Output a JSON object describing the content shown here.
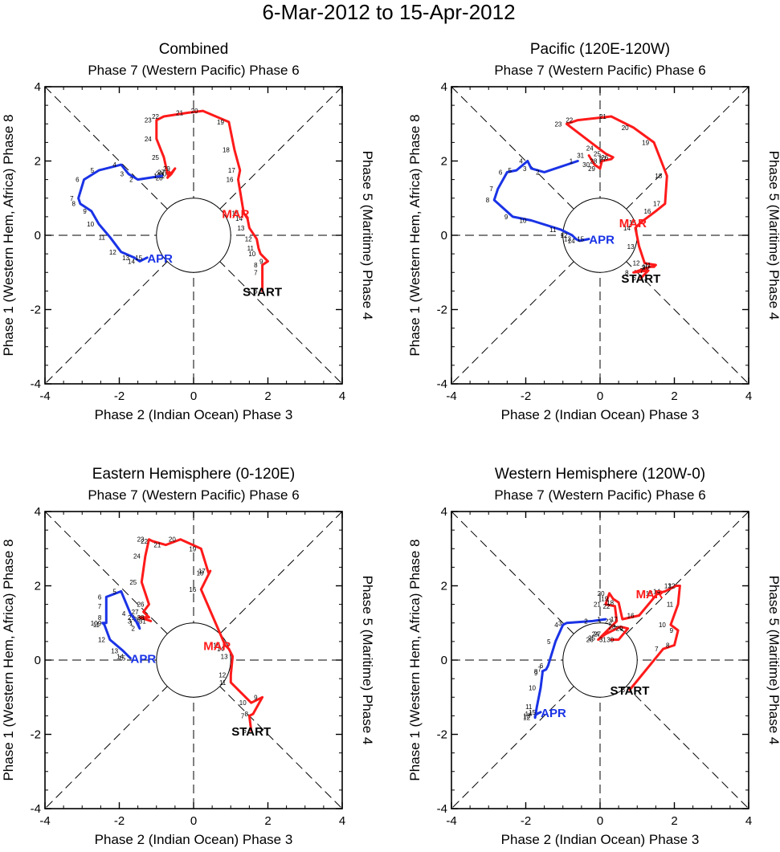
{
  "figure": {
    "title": "6-Mar-2012 to 15-Apr-2012"
  },
  "colors": {
    "mar": "#ff1a1a",
    "apr": "#1a33e6",
    "axis": "#000000",
    "start": "#000000"
  },
  "chart_data": [
    {
      "type": "line",
      "title": "Combined",
      "top_label": "Phase 7 (Western Pacific) Phase 6",
      "xlabel": "Phase 2 (Indian Ocean) Phase 3",
      "ylabel_left": "Phase 1 (Western Hem, Africa) Phase 8",
      "ylabel_right": "Phase 5 (Maritime) Phase 4",
      "xlim": [
        -4,
        4
      ],
      "ylim": [
        -4,
        4
      ],
      "xticks": [
        "-4",
        "-2",
        "0",
        "2",
        "4"
      ],
      "yticks": [
        "-4",
        "-2",
        "0",
        "2",
        "4"
      ],
      "markers": {
        "start": "START",
        "mar": "MAR",
        "apr": "APR"
      },
      "series": [
        {
          "name": "MAR",
          "color": "#ff1a1a",
          "days": [
            "6",
            "7",
            "8",
            "9",
            "10",
            "11",
            "12",
            "13",
            "14",
            "15",
            "16",
            "17",
            "18",
            "19",
            "20",
            "21",
            "22",
            "23",
            "24",
            "25",
            "26",
            "27",
            "28",
            "29",
            "30",
            "31"
          ],
          "x": [
            1.85,
            1.85,
            1.85,
            2.0,
            1.8,
            1.75,
            1.7,
            1.5,
            1.45,
            1.35,
            1.2,
            1.25,
            1.1,
            0.95,
            0.25,
            -0.15,
            -0.8,
            -1.0,
            -1.0,
            -0.8,
            -0.7,
            -0.65,
            -0.7,
            -0.5,
            -0.6,
            -0.65
          ],
          "y": [
            -1.5,
            -1.0,
            -0.8,
            -0.7,
            -0.5,
            -0.35,
            -0.1,
            0.2,
            0.45,
            0.6,
            1.5,
            1.75,
            2.3,
            3.05,
            3.35,
            3.3,
            3.2,
            3.1,
            2.6,
            2.1,
            1.65,
            1.7,
            1.55,
            1.8,
            1.65,
            1.6
          ]
        },
        {
          "name": "APR",
          "color": "#1a33e6",
          "days": [
            "1",
            "2",
            "3",
            "4",
            "5",
            "6",
            "7",
            "8",
            "9",
            "10",
            "11",
            "12",
            "13",
            "14",
            "15"
          ],
          "x": [
            -0.85,
            -1.5,
            -1.75,
            -1.95,
            -2.55,
            -2.95,
            -3.1,
            -3.05,
            -2.75,
            -2.55,
            -2.25,
            -1.95,
            -1.6,
            -1.45,
            -1.25
          ],
          "y": [
            1.6,
            1.5,
            1.65,
            1.9,
            1.75,
            1.5,
            1.0,
            0.85,
            0.65,
            0.3,
            -0.05,
            -0.45,
            -0.6,
            -0.7,
            -0.6
          ]
        }
      ]
    },
    {
      "type": "line",
      "title": "Pacific (120E-120W)",
      "top_label": "Phase 7 (Western Pacific) Phase 6",
      "xlabel": "Phase 2 (Indian Ocean) Phase 3",
      "ylabel_left": "Phase 1 (Western Hem, Africa) Phase 8",
      "ylabel_right": "Phase 5 (Maritime) Phase 4",
      "xlim": [
        -4,
        4
      ],
      "ylim": [
        -4,
        4
      ],
      "xticks": [
        "-4",
        "-2",
        "0",
        "2",
        "4"
      ],
      "yticks": [
        "-4",
        "-2",
        "0",
        "2",
        "4"
      ],
      "markers": {
        "start": "START",
        "mar": "MAR",
        "apr": "APR"
      },
      "series": [
        {
          "name": "MAR",
          "color": "#ff1a1a",
          "days": [
            "6",
            "7",
            "8",
            "9",
            "10",
            "11",
            "12",
            "13",
            "14",
            "15",
            "16",
            "17",
            "18",
            "19",
            "20",
            "21",
            "22",
            "23",
            "24",
            "25",
            "26",
            "27",
            "28",
            "29",
            "30",
            "31"
          ],
          "x": [
            1.1,
            1.3,
            0.9,
            1.35,
            1.45,
            1.5,
            1.2,
            1.05,
            0.95,
            1.1,
            1.5,
            1.75,
            1.8,
            1.45,
            0.9,
            0.3,
            -0.6,
            -0.9,
            -0.05,
            0.15,
            0.35,
            0.3,
            0.05,
            0.0,
            -0.15,
            -0.3
          ],
          "y": [
            -1.15,
            -0.95,
            -1.0,
            -0.85,
            -0.85,
            -0.8,
            -0.75,
            -0.3,
            0.2,
            0.35,
            0.65,
            0.85,
            1.6,
            2.5,
            2.9,
            3.2,
            3.1,
            3.0,
            2.35,
            2.2,
            2.1,
            2.05,
            2.0,
            1.8,
            1.9,
            2.15
          ]
        },
        {
          "name": "APR",
          "color": "#1a33e6",
          "days": [
            "1",
            "2",
            "3",
            "4",
            "5",
            "6",
            "7",
            "8",
            "9",
            "10",
            "11",
            "12",
            "13",
            "14",
            "15"
          ],
          "x": [
            -0.6,
            -1.5,
            -1.85,
            -1.95,
            -2.25,
            -2.5,
            -2.75,
            -2.85,
            -2.35,
            -1.85,
            -1.05,
            -0.75,
            -0.65,
            -0.55,
            -0.3
          ],
          "y": [
            2.0,
            1.7,
            1.8,
            2.0,
            1.75,
            1.7,
            1.25,
            0.95,
            0.5,
            0.4,
            0.15,
            0.0,
            -0.1,
            -0.15,
            -0.1
          ]
        }
      ]
    },
    {
      "type": "line",
      "title": "Eastern Hemisphere (0-120E)",
      "top_label": "Phase 7 (Western Pacific) Phase 6",
      "xlabel": "Phase 2 (Indian Ocean) Phase 3",
      "ylabel_left": "Phase 1 (Western Hem, Africa) Phase 8",
      "ylabel_right": "Phase 5 (Maritime) Phase 4",
      "xlim": [
        -4,
        4
      ],
      "ylim": [
        -4,
        4
      ],
      "xticks": [
        "-4",
        "-2",
        "0",
        "2",
        "4"
      ],
      "yticks": [
        "-4",
        "-2",
        "0",
        "2",
        "4"
      ],
      "markers": {
        "start": "START",
        "mar": "MAR",
        "apr": "APR"
      },
      "series": [
        {
          "name": "MAR",
          "color": "#ff1a1a",
          "days": [
            "6",
            "7",
            "8",
            "9",
            "10",
            "11",
            "12",
            "13",
            "14",
            "15",
            "16",
            "17",
            "18",
            "19",
            "20",
            "21",
            "22",
            "23",
            "24",
            "25",
            "26",
            "27",
            "28",
            "29",
            "30",
            "31"
          ],
          "x": [
            1.55,
            1.5,
            1.6,
            1.85,
            1.55,
            1.0,
            1.0,
            1.05,
            0.95,
            0.85,
            0.2,
            0.45,
            0.4,
            0.2,
            -0.35,
            -0.75,
            -1.1,
            -1.2,
            -1.3,
            -1.4,
            -1.2,
            -1.35,
            -1.2,
            -1.45,
            -1.3,
            -1.15
          ],
          "y": [
            -1.9,
            -1.5,
            -1.45,
            -1.0,
            -1.15,
            -0.6,
            -0.4,
            0.1,
            0.3,
            0.4,
            1.9,
            2.4,
            2.35,
            3.0,
            3.25,
            3.1,
            3.2,
            3.25,
            2.8,
            2.1,
            1.5,
            1.3,
            1.15,
            1.15,
            1.1,
            1.05
          ]
        },
        {
          "name": "APR",
          "color": "#1a33e6",
          "days": [
            "1",
            "2",
            "3",
            "4",
            "5",
            "6",
            "7",
            "8",
            "9",
            "10",
            "11",
            "12",
            "13",
            "14",
            "15"
          ],
          "x": [
            -1.5,
            -1.45,
            -1.55,
            -1.7,
            -1.95,
            -2.35,
            -2.35,
            -2.35,
            -2.35,
            -2.45,
            -2.4,
            -2.25,
            -1.9,
            -1.75,
            -1.7
          ],
          "y": [
            1.0,
            0.85,
            1.05,
            1.25,
            1.85,
            1.7,
            1.45,
            1.15,
            1.0,
            1.0,
            0.95,
            0.55,
            0.25,
            0.1,
            0.05
          ]
        }
      ]
    },
    {
      "type": "line",
      "title": "Western Hemisphere (120W-0)",
      "top_label": "Phase 7 (Western Pacific) Phase 6",
      "xlabel": "Phase 2 (Indian Ocean) Phase 3",
      "ylabel_left": "Phase 1 (Western Hem, Africa) Phase 8",
      "ylabel_right": "Phase 5 (Maritime) Phase 4",
      "xlim": [
        -4,
        4
      ],
      "ylim": [
        -4,
        4
      ],
      "xticks": [
        "-4",
        "-2",
        "0",
        "2",
        "4"
      ],
      "yticks": [
        "-4",
        "-2",
        "0",
        "2",
        "4"
      ],
      "markers": {
        "start": "START",
        "mar": "MAR",
        "apr": "APR"
      },
      "series": [
        {
          "name": "MAR",
          "color": "#ff1a1a",
          "days": [
            "6",
            "7",
            "8",
            "9",
            "10",
            "11",
            "12",
            "13",
            "14",
            "15",
            "16",
            "17",
            "18",
            "19",
            "20",
            "21",
            "22",
            "23",
            "24",
            "25",
            "26",
            "27",
            "28",
            "29",
            "30",
            "31"
          ],
          "x": [
            0.8,
            1.7,
            2.0,
            2.1,
            1.9,
            2.1,
            2.15,
            2.05,
            1.75,
            1.55,
            1.05,
            0.6,
            0.5,
            0.35,
            0.25,
            0.15,
            0.4,
            0.45,
            0.1,
            0.0,
            -0.05,
            0.15,
            0.55,
            0.75,
            0.5,
            0.3
          ],
          "y": [
            -0.8,
            0.3,
            0.4,
            0.8,
            0.95,
            1.5,
            2.0,
            2.0,
            1.85,
            1.8,
            1.2,
            1.1,
            1.55,
            1.65,
            1.8,
            1.5,
            1.45,
            1.05,
            0.7,
            0.6,
            0.55,
            0.7,
            0.9,
            0.85,
            0.55,
            0.55
          ]
        },
        {
          "name": "APR",
          "color": "#1a33e6",
          "days": [
            "1",
            "2",
            "3",
            "4",
            "5",
            "6",
            "7",
            "8",
            "9",
            "10",
            "11",
            "12",
            "13",
            "14",
            "15"
          ],
          "x": [
            0.15,
            -0.2,
            -0.9,
            -1.0,
            -1.2,
            -1.4,
            -1.45,
            -1.55,
            -1.55,
            -1.6,
            -1.7,
            -1.75,
            -1.75,
            -1.7,
            -1.6
          ],
          "y": [
            1.1,
            1.05,
            1.0,
            0.95,
            0.5,
            -0.15,
            -0.25,
            -0.3,
            -0.35,
            -0.75,
            -1.25,
            -1.55,
            -1.5,
            -1.45,
            -1.4
          ]
        }
      ]
    }
  ]
}
